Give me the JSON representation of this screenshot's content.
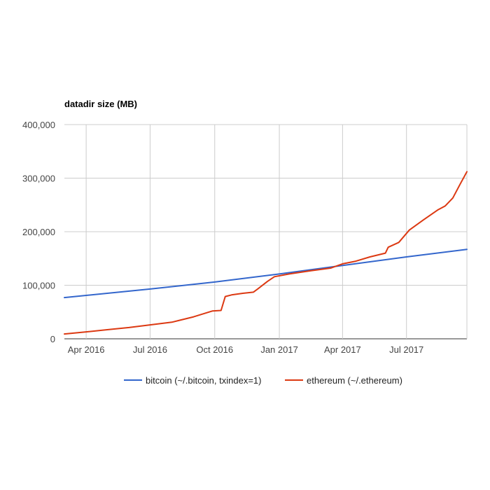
{
  "chart_data": {
    "type": "line",
    "title": "datadir size (MB)",
    "xlabel": "",
    "ylabel": "",
    "x_range": [
      "2016-03-01",
      "2017-09-25"
    ],
    "ylim": [
      0,
      400000
    ],
    "y_ticks": [
      0,
      100000,
      200000,
      300000,
      400000
    ],
    "y_tick_labels": [
      "0",
      "100,000",
      "200,000",
      "300,000",
      "400,000"
    ],
    "x_ticks": [
      "2016-04-01",
      "2016-07-01",
      "2016-10-01",
      "2017-01-01",
      "2017-04-01",
      "2017-07-01"
    ],
    "x_tick_labels": [
      "Apr 2016",
      "Jul 2016",
      "Oct 2016",
      "Jan 2017",
      "Apr 2017",
      "Jul 2017"
    ],
    "grid": true,
    "legend_position": "bottom",
    "series": [
      {
        "name": "bitcoin (~/.bitcoin, txindex=1)",
        "color": "#3366cc",
        "points": [
          [
            "2016-03-01",
            77000
          ],
          [
            "2016-07-01",
            93000
          ],
          [
            "2016-10-01",
            106000
          ],
          [
            "2017-01-01",
            121000
          ],
          [
            "2017-04-01",
            137000
          ],
          [
            "2017-07-01",
            153000
          ],
          [
            "2017-09-25",
            167000
          ]
        ]
      },
      {
        "name": "ethereum (~/.ethereum)",
        "color": "#dc3912",
        "points": [
          [
            "2016-03-01",
            9000
          ],
          [
            "2016-04-01",
            13000
          ],
          [
            "2016-05-01",
            17000
          ],
          [
            "2016-06-01",
            21000
          ],
          [
            "2016-07-01",
            26000
          ],
          [
            "2016-08-01",
            31000
          ],
          [
            "2016-09-01",
            41000
          ],
          [
            "2016-09-28",
            52000
          ],
          [
            "2016-10-10",
            53000
          ],
          [
            "2016-10-16",
            79000
          ],
          [
            "2016-10-25",
            82000
          ],
          [
            "2016-11-10",
            85000
          ],
          [
            "2016-11-25",
            87000
          ],
          [
            "2016-12-01",
            93000
          ],
          [
            "2016-12-15",
            107000
          ],
          [
            "2016-12-25",
            116000
          ],
          [
            "2017-01-15",
            121000
          ],
          [
            "2017-02-15",
            127000
          ],
          [
            "2017-03-15",
            132000
          ],
          [
            "2017-04-01",
            140000
          ],
          [
            "2017-04-20",
            145000
          ],
          [
            "2017-05-10",
            153000
          ],
          [
            "2017-06-01",
            160000
          ],
          [
            "2017-06-05",
            171000
          ],
          [
            "2017-06-20",
            180000
          ],
          [
            "2017-07-05",
            203000
          ],
          [
            "2017-07-25",
            222000
          ],
          [
            "2017-08-15",
            241000
          ],
          [
            "2017-08-25",
            248000
          ],
          [
            "2017-09-05",
            263000
          ],
          [
            "2017-09-15",
            288000
          ],
          [
            "2017-09-25",
            312000
          ]
        ]
      }
    ]
  }
}
